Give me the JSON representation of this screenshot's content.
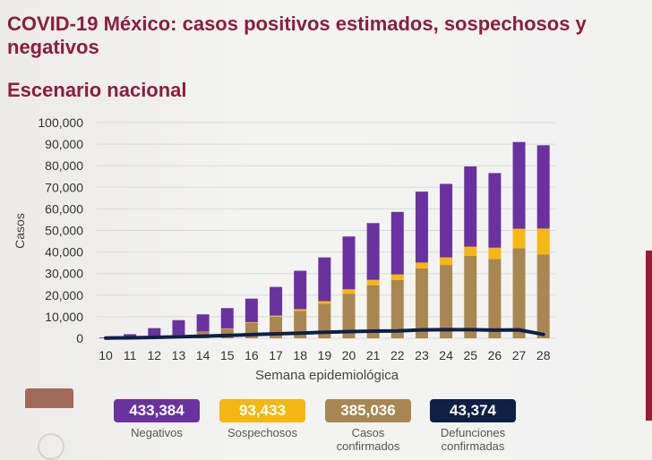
{
  "title": "COVID-19 México: casos positivos estimados, sospechosos y negativos",
  "subtitle": "Escenario nacional",
  "chart_data": {
    "type": "bar",
    "stacked": true,
    "xlabel": "Semana epidemiológica",
    "ylabel": "Casos",
    "ylim": [
      0,
      100000
    ],
    "yticks": [
      "0",
      "10,000",
      "20,000",
      "30,000",
      "40,000",
      "50,000",
      "60,000",
      "70,000",
      "80,000",
      "90,000",
      "100,000"
    ],
    "grid": true,
    "categories": [
      "10",
      "11",
      "12",
      "13",
      "14",
      "15",
      "16",
      "17",
      "18",
      "19",
      "20",
      "21",
      "22",
      "23",
      "24",
      "25",
      "26",
      "27",
      "28"
    ],
    "series": [
      {
        "name": "Casos confirmados",
        "color": "#a98752",
        "values": [
          100,
          300,
          500,
          1500,
          3000,
          4400,
          7200,
          10000,
          12700,
          16000,
          20700,
          24600,
          27100,
          32400,
          34000,
          38200,
          36800,
          41800,
          38900
        ]
      },
      {
        "name": "Sospechosos",
        "color": "#f5b712",
        "values": [
          0,
          0,
          0,
          0,
          100,
          200,
          300,
          500,
          800,
          1200,
          2000,
          2500,
          2500,
          2700,
          3500,
          4300,
          5200,
          9000,
          12000
        ]
      },
      {
        "name": "Negativos",
        "color": "#6a32a0",
        "values": [
          300,
          1600,
          4200,
          6900,
          8000,
          9400,
          10900,
          13300,
          17800,
          20300,
          24500,
          26300,
          29000,
          32900,
          34100,
          37200,
          34600,
          40200,
          38600
        ]
      },
      {
        "name": "Defunciones confirmadas",
        "type": "line",
        "color": "#0f1f45",
        "values": [
          100,
          200,
          400,
          700,
          1000,
          1300,
          1700,
          2100,
          2400,
          2800,
          3100,
          3300,
          3400,
          3900,
          4000,
          4000,
          3800,
          3900,
          1800
        ]
      }
    ]
  },
  "totals": [
    {
      "value": "433,384",
      "label": "Negativos",
      "color": "#6a32a0"
    },
    {
      "value": "93,433",
      "label": "Sospechosos",
      "color": "#f5b712"
    },
    {
      "value": "385,036",
      "label": "Casos confirmados",
      "color": "#a98752"
    },
    {
      "value": "43,374",
      "label": "Defunciones confirmadas",
      "color": "#0f1f45"
    }
  ]
}
